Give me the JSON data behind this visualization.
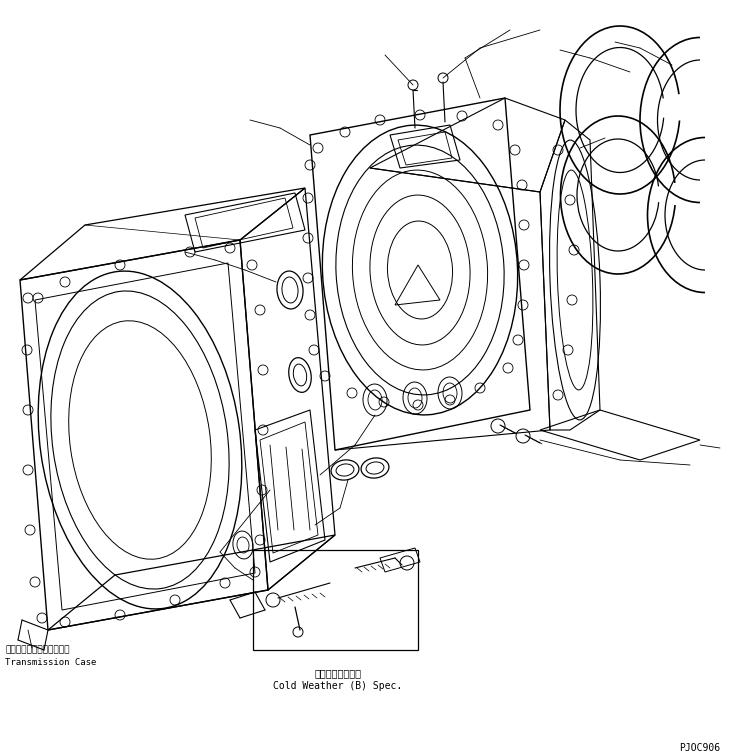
{
  "background_color": "#ffffff",
  "line_color": "#000000",
  "label_jp_transmission": "トランスミッションケース",
  "label_en_transmission": "Transmission Case",
  "label_jp_cold": "寒冷地（Ｂ）仕様",
  "label_en_cold": "Cold Weather (B) Spec.",
  "part_number": "PJOC906",
  "fig_width": 7.31,
  "fig_height": 7.54,
  "dpi": 100
}
